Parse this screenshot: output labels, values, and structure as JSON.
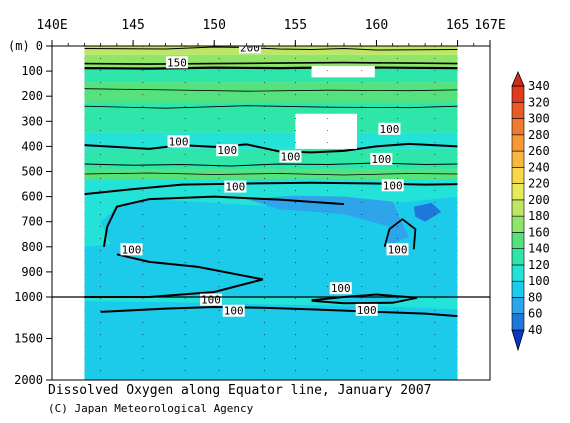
{
  "chart_data": {
    "type": "heatmap",
    "title": "Dissolved Oxygen along Equator line, January 2007",
    "credit": "(C) Japan Meteorological Agency",
    "x_axis": {
      "range": [
        140,
        167
      ],
      "unit": "E",
      "ticks": [
        "140E",
        "145",
        "150",
        "155",
        "160",
        "165",
        "167E"
      ],
      "tick_values": [
        140,
        145,
        150,
        155,
        160,
        165,
        167
      ]
    },
    "y_axis": {
      "label": "(m)",
      "inverted": true,
      "ticks": [
        "0",
        "100",
        "200",
        "300",
        "400",
        "500",
        "600",
        "700",
        "800",
        "900",
        "1000",
        "1500",
        "2000"
      ],
      "tick_values": [
        0,
        100,
        200,
        300,
        400,
        500,
        600,
        700,
        800,
        900,
        1000,
        1500,
        2000
      ],
      "scale_break_at": 1000
    },
    "data_extent_lon": [
      142,
      165
    ],
    "colorbar": {
      "labels": [
        "40",
        "60",
        "80",
        "100",
        "120",
        "140",
        "160",
        "180",
        "200",
        "220",
        "240",
        "260",
        "280",
        "300",
        "320",
        "340"
      ],
      "levels": [
        40,
        60,
        80,
        100,
        120,
        140,
        160,
        180,
        200,
        220,
        240,
        260,
        280,
        300,
        320,
        340
      ],
      "colors": [
        "#0a37c8",
        "#1e78dc",
        "#2ea5ea",
        "#1ccbea",
        "#23e3d8",
        "#2ee6a9",
        "#55e27c",
        "#8ee567",
        "#bde664",
        "#e7ea5a",
        "#f7d84b",
        "#f7b83e",
        "#f79a35",
        "#f27a30",
        "#ea5a26",
        "#e03a1e",
        "#d62a18"
      ]
    },
    "contour_labels": [
      {
        "lon": 152.2,
        "depth": 5,
        "value": "200"
      },
      {
        "lon": 147.7,
        "depth": 65,
        "value": "150"
      },
      {
        "lon": 147.8,
        "depth": 380,
        "value": "100"
      },
      {
        "lon": 150.8,
        "depth": 415,
        "value": "100"
      },
      {
        "lon": 154.7,
        "depth": 440,
        "value": "100"
      },
      {
        "lon": 160.8,
        "depth": 330,
        "value": "100"
      },
      {
        "lon": 160.3,
        "depth": 450,
        "value": "100"
      },
      {
        "lon": 151.3,
        "depth": 560,
        "value": "100"
      },
      {
        "lon": 161.0,
        "depth": 555,
        "value": "100"
      },
      {
        "lon": 144.9,
        "depth": 810,
        "value": "100"
      },
      {
        "lon": 161.3,
        "depth": 810,
        "value": "100"
      },
      {
        "lon": 157.8,
        "depth": 965,
        "value": "100"
      },
      {
        "lon": 149.8,
        "depth": 1032,
        "value": "100"
      },
      {
        "lon": 151.2,
        "depth": 1165,
        "value": "100"
      },
      {
        "lon": 159.4,
        "depth": 1155,
        "value": "100"
      }
    ],
    "profile_lons": [
      142,
      143,
      145.6,
      148.2,
      150.3,
      153.1,
      155,
      157,
      159.1,
      161.3,
      163.6,
      165
    ],
    "masked_regions": [
      {
        "lon": [
          156.0,
          159.9
        ],
        "depth": [
          80,
          125
        ]
      },
      {
        "lon": [
          155.0,
          158.8
        ],
        "depth": [
          270,
          410
        ]
      }
    ],
    "bands": [
      {
        "depth": [
          0,
          35
        ],
        "color_index": 8
      },
      {
        "depth": [
          35,
          90
        ],
        "color_index": 7
      },
      {
        "depth": [
          90,
          145
        ],
        "color_index": 5
      },
      {
        "depth": [
          145,
          225
        ],
        "color_index": 6
      },
      {
        "depth": [
          225,
          345
        ],
        "color_index": 5
      },
      {
        "depth": [
          345,
          410
        ],
        "color_index": 4
      },
      {
        "depth": [
          410,
          490
        ],
        "color_index": 5
      },
      {
        "depth": [
          490,
          530
        ],
        "color_index": 6
      },
      {
        "depth": [
          530,
          580
        ],
        "color_index": 4
      },
      {
        "depth": [
          580,
          1000
        ],
        "color_index": 3
      },
      {
        "depth": [
          1000,
          2000
        ],
        "color_index": 3
      }
    ]
  }
}
